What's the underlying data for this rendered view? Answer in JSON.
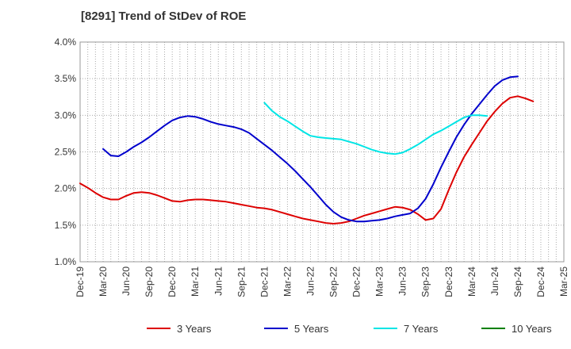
{
  "chart_data": {
    "type": "line",
    "title": "[8291]  Trend of StDev of ROE",
    "xlabel": "",
    "ylabel": "",
    "ylim": [
      1.0,
      4.0
    ],
    "yticks": [
      1.0,
      1.5,
      2.0,
      2.5,
      3.0,
      3.5,
      4.0
    ],
    "ytick_labels": [
      "1.0%",
      "1.5%",
      "2.0%",
      "2.5%",
      "3.0%",
      "3.5%",
      "4.0%"
    ],
    "xtick_labels": [
      "Dec-19",
      "Mar-20",
      "Jun-20",
      "Sep-20",
      "Dec-20",
      "Mar-21",
      "Jun-21",
      "Sep-21",
      "Dec-21",
      "Mar-22",
      "Jun-22",
      "Sep-22",
      "Dec-22",
      "Mar-23",
      "Jun-23",
      "Sep-23",
      "Dec-23",
      "Mar-24",
      "Jun-24",
      "Sep-24",
      "Dec-24",
      "Mar-25"
    ],
    "grid": true,
    "legend_position": "bottom",
    "series": [
      {
        "name": "3 Years",
        "color": "#dd0000",
        "points": [
          [
            0,
            2.07
          ],
          [
            1,
            2.01
          ],
          [
            2,
            1.94
          ],
          [
            3,
            1.88
          ],
          [
            4,
            1.85
          ],
          [
            5,
            1.85
          ],
          [
            6,
            1.9
          ],
          [
            7,
            1.94
          ],
          [
            8,
            1.95
          ],
          [
            9,
            1.94
          ],
          [
            10,
            1.91
          ],
          [
            11,
            1.87
          ],
          [
            12,
            1.83
          ],
          [
            13,
            1.82
          ],
          [
            14,
            1.84
          ],
          [
            15,
            1.85
          ],
          [
            16,
            1.85
          ],
          [
            17,
            1.84
          ],
          [
            18,
            1.83
          ],
          [
            19,
            1.82
          ],
          [
            20,
            1.8
          ],
          [
            21,
            1.78
          ],
          [
            22,
            1.76
          ],
          [
            23,
            1.74
          ],
          [
            24,
            1.73
          ],
          [
            25,
            1.71
          ],
          [
            26,
            1.68
          ],
          [
            27,
            1.65
          ],
          [
            28,
            1.62
          ],
          [
            29,
            1.59
          ],
          [
            30,
            1.57
          ],
          [
            31,
            1.55
          ],
          [
            32,
            1.53
          ],
          [
            33,
            1.52
          ],
          [
            34,
            1.53
          ],
          [
            35,
            1.55
          ],
          [
            36,
            1.59
          ],
          [
            37,
            1.63
          ],
          [
            38,
            1.66
          ],
          [
            39,
            1.69
          ],
          [
            40,
            1.72
          ],
          [
            41,
            1.75
          ],
          [
            42,
            1.74
          ],
          [
            43,
            1.71
          ],
          [
            44,
            1.65
          ],
          [
            45,
            1.57
          ],
          [
            46,
            1.59
          ],
          [
            47,
            1.72
          ],
          [
            48,
            1.98
          ],
          [
            49,
            2.22
          ],
          [
            50,
            2.43
          ],
          [
            51,
            2.6
          ],
          [
            52,
            2.76
          ],
          [
            53,
            2.92
          ],
          [
            54,
            3.05
          ],
          [
            55,
            3.16
          ],
          [
            56,
            3.24
          ],
          [
            57,
            3.26
          ],
          [
            58,
            3.23
          ],
          [
            59,
            3.19
          ]
        ]
      },
      {
        "name": "5 Years",
        "color": "#0000cc",
        "points": [
          [
            3,
            2.54
          ],
          [
            4,
            2.45
          ],
          [
            5,
            2.44
          ],
          [
            6,
            2.5
          ],
          [
            7,
            2.57
          ],
          [
            8,
            2.63
          ],
          [
            9,
            2.7
          ],
          [
            10,
            2.78
          ],
          [
            11,
            2.86
          ],
          [
            12,
            2.93
          ],
          [
            13,
            2.97
          ],
          [
            14,
            2.99
          ],
          [
            15,
            2.98
          ],
          [
            16,
            2.95
          ],
          [
            17,
            2.91
          ],
          [
            18,
            2.88
          ],
          [
            19,
            2.86
          ],
          [
            20,
            2.84
          ],
          [
            21,
            2.81
          ],
          [
            22,
            2.76
          ],
          [
            23,
            2.68
          ],
          [
            24,
            2.6
          ],
          [
            25,
            2.52
          ],
          [
            26,
            2.43
          ],
          [
            27,
            2.34
          ],
          [
            28,
            2.24
          ],
          [
            29,
            2.13
          ],
          [
            30,
            2.02
          ],
          [
            31,
            1.9
          ],
          [
            32,
            1.78
          ],
          [
            33,
            1.68
          ],
          [
            34,
            1.61
          ],
          [
            35,
            1.57
          ],
          [
            36,
            1.55
          ],
          [
            37,
            1.55
          ],
          [
            38,
            1.56
          ],
          [
            39,
            1.57
          ],
          [
            40,
            1.59
          ],
          [
            41,
            1.62
          ],
          [
            42,
            1.64
          ],
          [
            43,
            1.66
          ],
          [
            44,
            1.73
          ],
          [
            45,
            1.86
          ],
          [
            46,
            2.06
          ],
          [
            47,
            2.29
          ],
          [
            48,
            2.5
          ],
          [
            49,
            2.7
          ],
          [
            50,
            2.87
          ],
          [
            51,
            3.02
          ],
          [
            52,
            3.15
          ],
          [
            53,
            3.28
          ],
          [
            54,
            3.4
          ],
          [
            55,
            3.48
          ],
          [
            56,
            3.52
          ],
          [
            57,
            3.53
          ]
        ]
      },
      {
        "name": "7 Years",
        "color": "#00e5e5",
        "points": [
          [
            24,
            3.17
          ],
          [
            25,
            3.06
          ],
          [
            26,
            2.98
          ],
          [
            27,
            2.92
          ],
          [
            28,
            2.85
          ],
          [
            29,
            2.78
          ],
          [
            30,
            2.72
          ],
          [
            31,
            2.7
          ],
          [
            32,
            2.69
          ],
          [
            33,
            2.68
          ],
          [
            34,
            2.67
          ],
          [
            35,
            2.64
          ],
          [
            36,
            2.61
          ],
          [
            37,
            2.57
          ],
          [
            38,
            2.53
          ],
          [
            39,
            2.5
          ],
          [
            40,
            2.48
          ],
          [
            41,
            2.47
          ],
          [
            42,
            2.49
          ],
          [
            43,
            2.54
          ],
          [
            44,
            2.6
          ],
          [
            45,
            2.67
          ],
          [
            46,
            2.74
          ],
          [
            47,
            2.79
          ],
          [
            48,
            2.85
          ],
          [
            49,
            2.91
          ],
          [
            50,
            2.97
          ],
          [
            51,
            3.0
          ],
          [
            52,
            3.0
          ],
          [
            53,
            2.99
          ]
        ]
      },
      {
        "name": "10 Years",
        "color": "#008000",
        "points": []
      }
    ]
  }
}
